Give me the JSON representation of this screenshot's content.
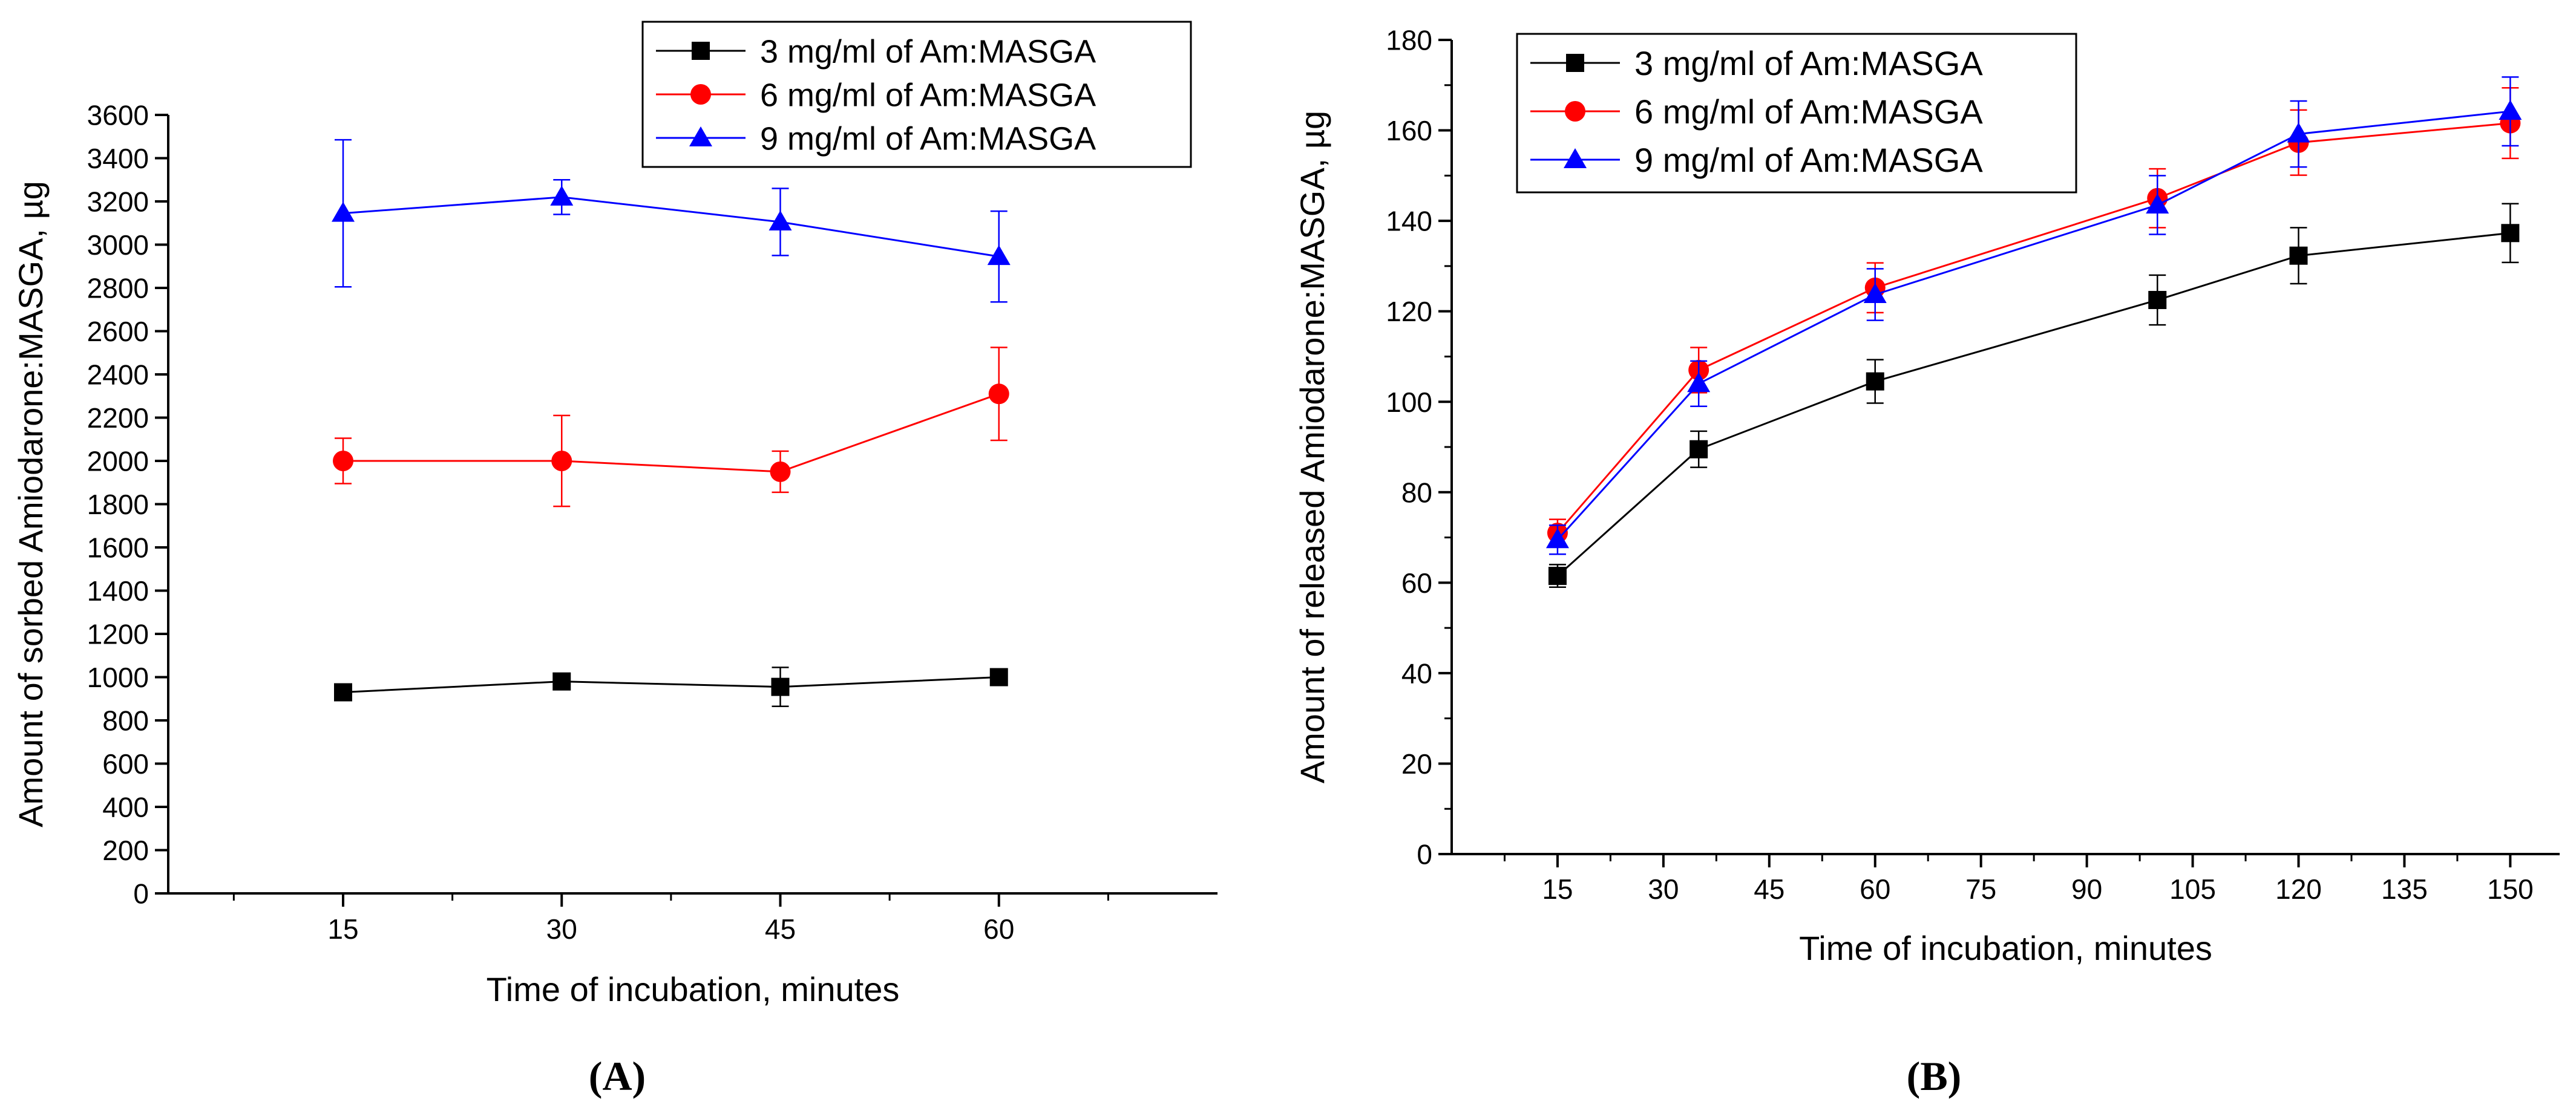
{
  "chart_data": [
    {
      "type": "line",
      "panel_label": "(A)",
      "xlabel": "Time of incubation, minutes",
      "ylabel": "Amount of sorbed Amiodarone:MASGA, µg",
      "xlim": [
        3,
        75
      ],
      "ylim": [
        0,
        3600
      ],
      "xticks": [
        15,
        30,
        45,
        60
      ],
      "yticks": [
        0,
        200,
        400,
        600,
        800,
        1000,
        1200,
        1400,
        1600,
        1800,
        2000,
        2200,
        2400,
        2600,
        2800,
        3000,
        3200,
        3400,
        3600
      ],
      "legend_position": "top-right",
      "series": [
        {
          "name": "3 mg/ml of Am:MASGA",
          "color": "#000000",
          "marker": "square",
          "x": [
            15,
            30,
            45,
            60
          ],
          "values": [
            930,
            980,
            955,
            1000
          ],
          "errors": [
            15,
            15,
            90,
            15
          ]
        },
        {
          "name": "6 mg/ml of Am:MASGA",
          "color": "#ff0000",
          "marker": "circle",
          "x": [
            15,
            30,
            45,
            60
          ],
          "values": [
            2000,
            2000,
            1950,
            2310
          ],
          "errors": [
            105,
            210,
            95,
            215
          ]
        },
        {
          "name": "9 mg/ml of Am:MASGA",
          "color": "#0000ff",
          "marker": "triangle",
          "x": [
            15,
            30,
            45,
            60
          ],
          "values": [
            3145,
            3220,
            3105,
            2945
          ],
          "errors": [
            340,
            80,
            155,
            210
          ]
        }
      ]
    },
    {
      "type": "line",
      "panel_label": "(B)",
      "xlabel": "Time of incubation, minutes",
      "ylabel": "Amount of released Amiodarone:MASGA, µg",
      "xlim": [
        0,
        157
      ],
      "ylim": [
        0,
        180
      ],
      "xticks": [
        15,
        30,
        45,
        60,
        75,
        90,
        105,
        120,
        135,
        150
      ],
      "yticks": [
        0,
        20,
        40,
        60,
        80,
        100,
        120,
        140,
        160,
        180
      ],
      "legend_position": "top-left",
      "series": [
        {
          "name": "3 mg/ml of Am:MASGA",
          "color": "#000000",
          "marker": "square",
          "x": [
            15,
            35,
            60,
            100,
            120,
            150
          ],
          "values": [
            61.5,
            89.5,
            104.5,
            122.5,
            132.3,
            137.3
          ],
          "errors": [
            2.5,
            4.0,
            4.8,
            5.5,
            6.2,
            6.5
          ]
        },
        {
          "name": "6 mg/ml of Am:MASGA",
          "color": "#ff0000",
          "marker": "circle",
          "x": [
            15,
            35,
            60,
            100,
            120,
            150
          ],
          "values": [
            71,
            107,
            125.2,
            145,
            157.3,
            161.6
          ],
          "errors": [
            3.0,
            5.0,
            5.5,
            6.5,
            7.2,
            7.8
          ]
        },
        {
          "name": "9 mg/ml of Am:MASGA",
          "color": "#0000ff",
          "marker": "triangle",
          "x": [
            15,
            35,
            60,
            100,
            120,
            150
          ],
          "values": [
            69.5,
            104,
            123.7,
            143.5,
            159.2,
            164.2
          ],
          "errors": [
            3.2,
            5.0,
            5.7,
            6.5,
            7.3,
            7.6
          ]
        }
      ]
    }
  ]
}
